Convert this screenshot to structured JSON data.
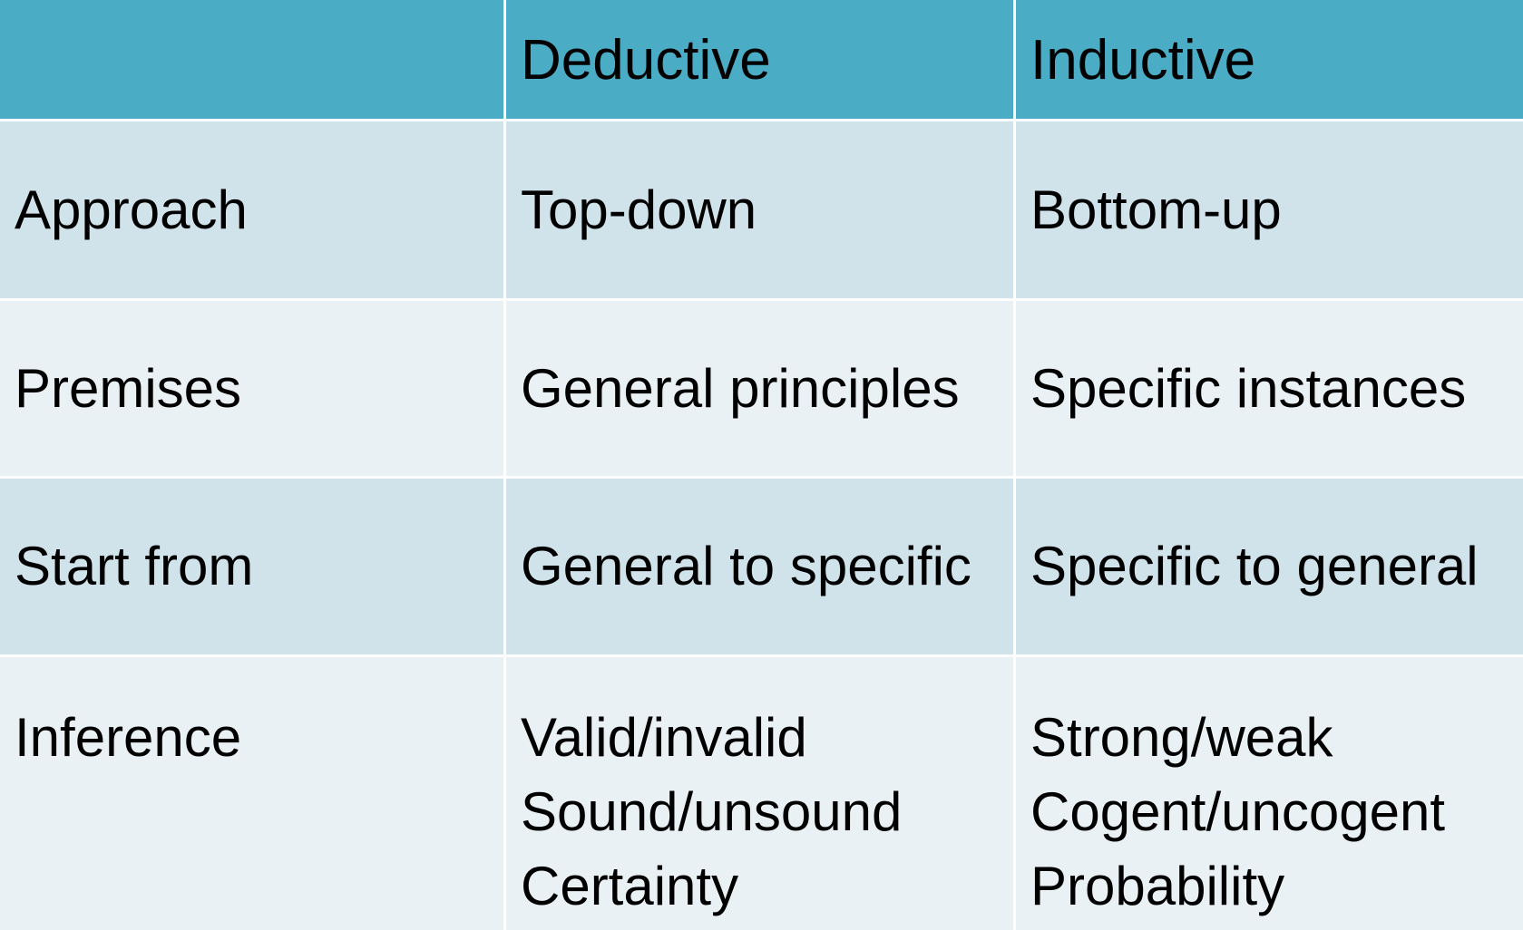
{
  "table": {
    "header": {
      "empty": "",
      "deductive": "Deductive",
      "inductive": "Inductive"
    },
    "rows": [
      {
        "label": "Approach",
        "deductive": "Top-down",
        "inductive": "Bottom-up"
      },
      {
        "label": "Premises",
        "deductive": "General principles",
        "inductive": "Specific instances"
      },
      {
        "label": "Start from",
        "deductive": "General to specific",
        "inductive": "Specific to general"
      },
      {
        "label": "Inference",
        "deductive": [
          "Valid/invalid",
          "Sound/unsound",
          "Certainty"
        ],
        "inductive": [
          "Strong/weak",
          "Cogent/uncogent",
          "Probability"
        ]
      }
    ]
  },
  "colors": {
    "header_bg": "#4bacc6",
    "row_dark": "#d0e3ea",
    "row_light": "#e9f1f5"
  }
}
